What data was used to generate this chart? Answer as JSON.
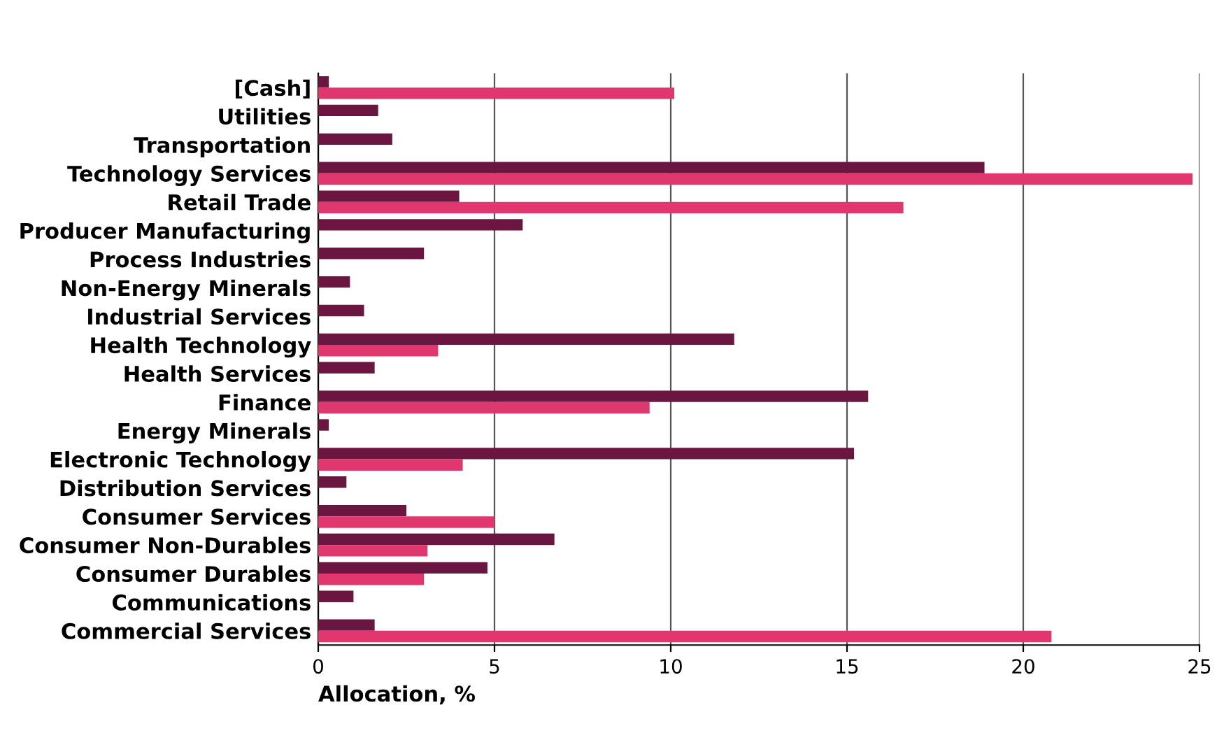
{
  "chart_data": {
    "type": "bar",
    "orientation": "horizontal",
    "xlabel": "Allocation, %",
    "categories": [
      "[Cash]",
      "Utilities",
      "Transportation",
      "Technology Services",
      "Retail Trade",
      "Producer Manufacturing",
      "Process Industries",
      "Non-Energy Minerals",
      "Industrial Services",
      "Health Technology",
      "Health Services",
      "Finance",
      "Energy Minerals",
      "Electronic Technology",
      "Distribution Services",
      "Consumer Services",
      "Consumer Non-Durables",
      "Consumer Durables",
      "Communications",
      "Commercial Services"
    ],
    "series": [
      {
        "color": "#6b1541",
        "values": [
          0.3,
          1.7,
          2.1,
          18.9,
          4.0,
          5.8,
          3.0,
          0.9,
          1.3,
          11.8,
          1.6,
          15.6,
          0.3,
          15.2,
          0.8,
          2.5,
          6.7,
          4.8,
          1.0,
          1.6
        ]
      },
      {
        "color": "#e0386e",
        "values": [
          10.1,
          null,
          null,
          24.8,
          16.6,
          null,
          null,
          null,
          null,
          3.4,
          null,
          9.4,
          null,
          4.1,
          null,
          5.0,
          3.1,
          3.0,
          null,
          20.8
        ]
      }
    ],
    "xlim": [
      0,
      25
    ],
    "xticks": [
      0,
      5,
      10,
      15,
      20,
      25
    ],
    "grid": "x"
  }
}
